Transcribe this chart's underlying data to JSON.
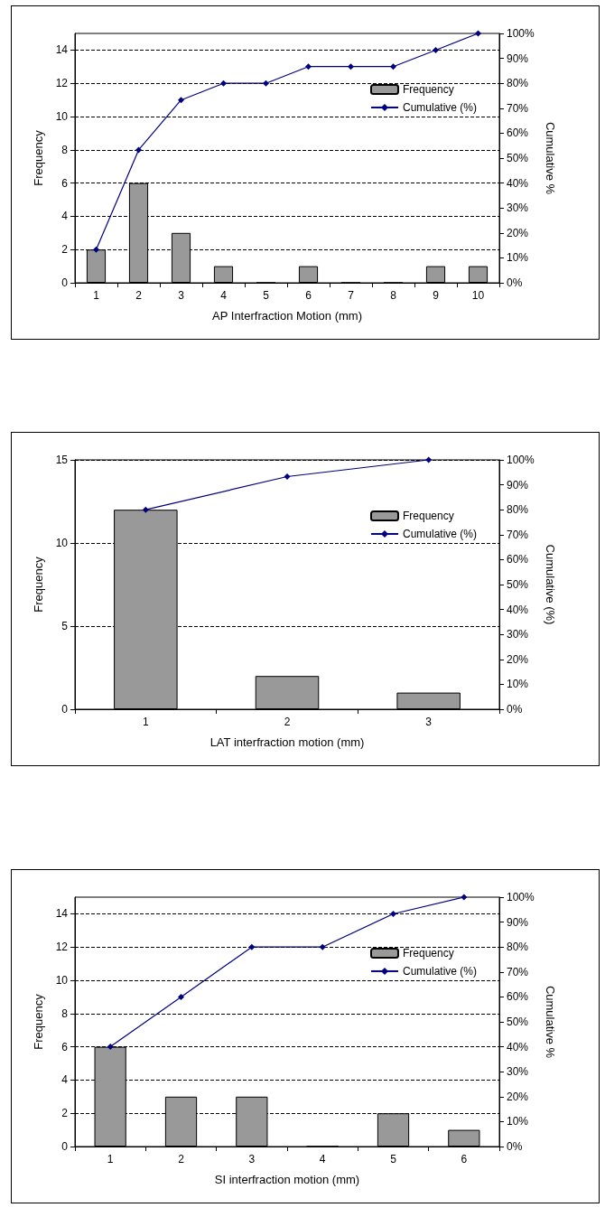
{
  "chart_data": [
    {
      "type": "bar",
      "xlabel": "AP Interfraction Motion (mm)",
      "ylabel": "Frequency",
      "y2label": "Cumulative %",
      "categories": [
        "1",
        "2",
        "3",
        "4",
        "5",
        "6",
        "7",
        "8",
        "9",
        "10"
      ],
      "series": [
        {
          "name": "Frequency",
          "color": "#999999",
          "values": [
            2,
            6,
            3,
            1,
            0,
            1,
            0,
            0,
            1,
            1
          ]
        },
        {
          "name": "Cumulative (%)",
          "type": "line",
          "axis": "y2",
          "color": "#000080",
          "values": [
            13.3,
            53.3,
            73.3,
            80,
            80,
            86.7,
            86.7,
            86.7,
            93.3,
            100
          ]
        }
      ],
      "ylim": [
        0,
        15
      ],
      "yticks": [
        0,
        2,
        4,
        6,
        8,
        10,
        12,
        14
      ],
      "y2lim": [
        0,
        100
      ],
      "y2ticks": [
        {
          "value": 0,
          "label": "0%"
        },
        {
          "value": 10,
          "label": "10%"
        },
        {
          "value": 20,
          "label": "20%"
        },
        {
          "value": 30,
          "label": "30%"
        },
        {
          "value": 40,
          "label": "40%"
        },
        {
          "value": 50,
          "label": "50%"
        },
        {
          "value": 60,
          "label": "60%"
        },
        {
          "value": 70,
          "label": "70%"
        },
        {
          "value": 80,
          "label": "80%"
        },
        {
          "value": 90,
          "label": "90%"
        },
        {
          "value": 100,
          "label": "100%"
        }
      ],
      "grid": "y",
      "legend": "top right",
      "marker": "diamond",
      "line_style": "solid"
    },
    {
      "type": "bar",
      "xlabel": "LAT interfraction motion (mm)",
      "ylabel": "Frequency",
      "y2label": "Cumulative (%)",
      "categories": [
        "1",
        "2",
        "3"
      ],
      "series": [
        {
          "name": "Frequency",
          "color": "#999999",
          "values": [
            12,
            2,
            1
          ]
        },
        {
          "name": "Cumulative (%)",
          "type": "line",
          "axis": "y2",
          "color": "#000080",
          "values": [
            80,
            93.3,
            100
          ]
        }
      ],
      "ylim": [
        0,
        15
      ],
      "yticks": [
        0,
        5,
        10,
        15
      ],
      "y2lim": [
        0,
        100
      ],
      "y2ticks": [
        {
          "value": 0,
          "label": "0%"
        },
        {
          "value": 10,
          "label": "10%"
        },
        {
          "value": 20,
          "label": "20%"
        },
        {
          "value": 30,
          "label": "30%"
        },
        {
          "value": 40,
          "label": "40%"
        },
        {
          "value": 50,
          "label": "50%"
        },
        {
          "value": 60,
          "label": "60%"
        },
        {
          "value": 70,
          "label": "70%"
        },
        {
          "value": 80,
          "label": "80%"
        },
        {
          "value": 90,
          "label": "90%"
        },
        {
          "value": 100,
          "label": "100%"
        }
      ],
      "grid": "y",
      "legend": "top right",
      "marker": "diamond",
      "line_style": "solid"
    },
    {
      "type": "bar",
      "xlabel": "SI interfraction motion (mm)",
      "ylabel": "Frequency",
      "y2label": "Cumulative %",
      "categories": [
        "1",
        "2",
        "3",
        "4",
        "5",
        "6"
      ],
      "series": [
        {
          "name": "Frequency",
          "color": "#999999",
          "values": [
            6,
            3,
            3,
            0,
            2,
            1
          ]
        },
        {
          "name": "Cumulative (%)",
          "type": "line",
          "axis": "y2",
          "color": "#000080",
          "values": [
            40,
            60,
            80,
            80,
            93.3,
            100
          ]
        }
      ],
      "ylim": [
        0,
        15
      ],
      "yticks": [
        0,
        2,
        4,
        6,
        8,
        10,
        12,
        14
      ],
      "y2lim": [
        0,
        100
      ],
      "y2ticks": [
        {
          "value": 0,
          "label": "0%"
        },
        {
          "value": 10,
          "label": "10%"
        },
        {
          "value": 20,
          "label": "20%"
        },
        {
          "value": 30,
          "label": "30%"
        },
        {
          "value": 40,
          "label": "40%"
        },
        {
          "value": 50,
          "label": "50%"
        },
        {
          "value": 60,
          "label": "60%"
        },
        {
          "value": 70,
          "label": "70%"
        },
        {
          "value": 80,
          "label": "80%"
        },
        {
          "value": 90,
          "label": "90%"
        },
        {
          "value": 100,
          "label": "100%"
        }
      ],
      "grid": "y",
      "legend": "top right",
      "marker": "diamond",
      "line_style": "solid"
    }
  ]
}
